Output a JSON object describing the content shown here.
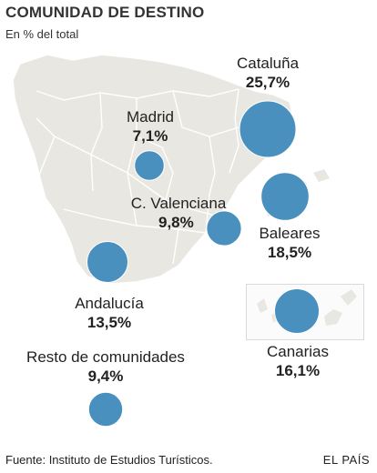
{
  "title": "COMUNIDAD DE DESTINO",
  "subtitle": "En % del total",
  "colors": {
    "land": "#e8e7e1",
    "border": "#ffffff",
    "bubble": "#4a90bf",
    "bubble_stroke": "#ffffff"
  },
  "regions": [
    {
      "id": "cataluna",
      "name": "Cataluña",
      "percent": 25.7,
      "label": "25,7%"
    },
    {
      "id": "madrid",
      "name": "Madrid",
      "percent": 7.1,
      "label": "7,1%"
    },
    {
      "id": "valenciana",
      "name": "C. Valenciana",
      "percent": 9.8,
      "label": "9,8%"
    },
    {
      "id": "baleares",
      "name": "Baleares",
      "percent": 18.5,
      "label": "18,5%"
    },
    {
      "id": "andalucia",
      "name": "Andalucía",
      "percent": 13.5,
      "label": "13,5%"
    },
    {
      "id": "canarias",
      "name": "Canarias",
      "percent": 16.1,
      "label": "16,1%"
    },
    {
      "id": "resto",
      "name": "Resto de comunidades",
      "percent": 9.4,
      "label": "9,4%"
    }
  ],
  "footer": {
    "source": "Fuente: Instituto de Estudios Turísticos.",
    "brand": "EL PAÍS"
  }
}
